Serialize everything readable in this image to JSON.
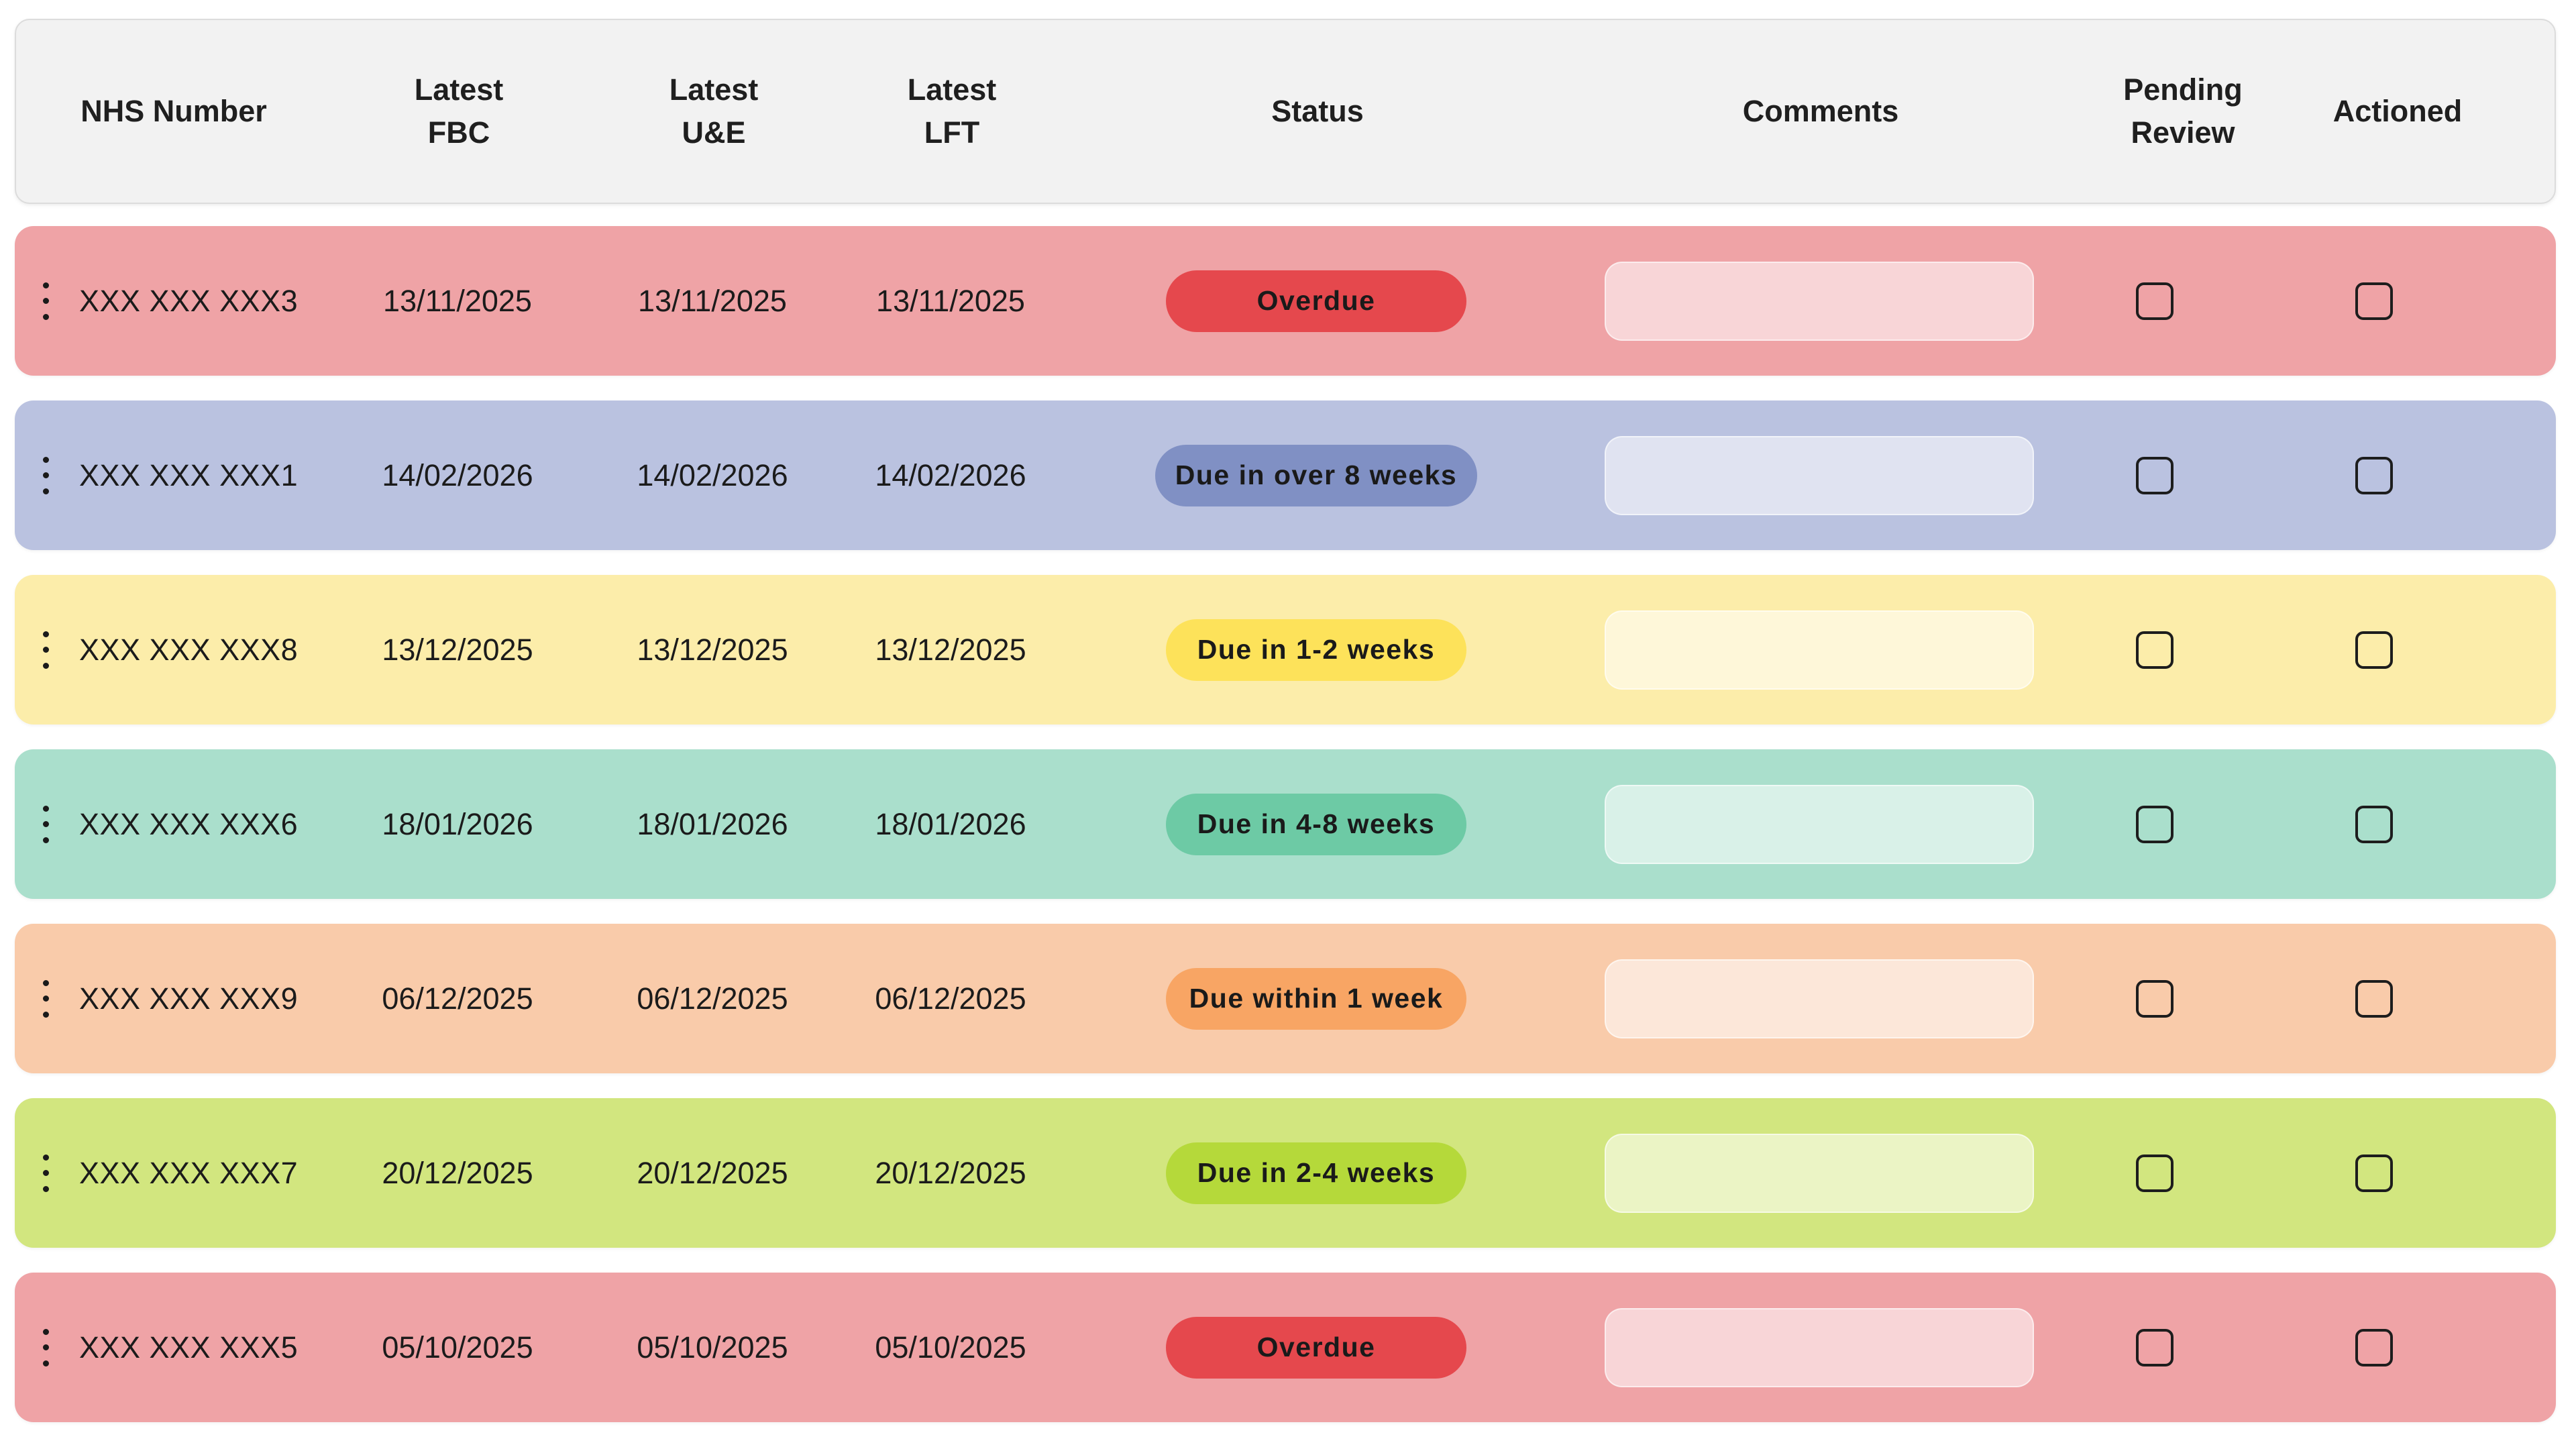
{
  "header": {
    "nhs_number": "NHS Number",
    "latest_fbc": "Latest\nFBC",
    "latest_ue": "Latest\nU&E",
    "latest_lft": "Latest\nLFT",
    "status": "Status",
    "comments": "Comments",
    "pending_review": "Pending\nReview",
    "actioned": "Actioned"
  },
  "status_colors": {
    "Overdue": {
      "row": "#efa3a6",
      "badge": "#e5484d"
    },
    "Due in over 8 weeks": {
      "row": "#bac2e0",
      "badge": "#8090c4"
    },
    "Due in 1-2 weeks": {
      "row": "#fcedaa",
      "badge": "#fde25a"
    },
    "Due in 4-8 weeks": {
      "row": "#aadfcc",
      "badge": "#6dcaa5"
    },
    "Due within 1 week": {
      "row": "#f9cbaa",
      "badge": "#f8a564"
    },
    "Due in 2-4 weeks": {
      "row": "#d2e67f",
      "badge": "#b5d93a"
    }
  },
  "rows": [
    {
      "nhs": "XXX XXX XXX3",
      "fbc": "13/11/2025",
      "ue": "13/11/2025",
      "lft": "13/11/2025",
      "status": "Overdue",
      "comment": "",
      "pending_review": false,
      "actioned": false
    },
    {
      "nhs": "XXX XXX XXX1",
      "fbc": "14/02/2026",
      "ue": "14/02/2026",
      "lft": "14/02/2026",
      "status": "Due in over 8 weeks",
      "comment": "",
      "pending_review": false,
      "actioned": false
    },
    {
      "nhs": "XXX XXX XXX8",
      "fbc": "13/12/2025",
      "ue": "13/12/2025",
      "lft": "13/12/2025",
      "status": "Due in 1-2 weeks",
      "comment": "",
      "pending_review": false,
      "actioned": false
    },
    {
      "nhs": "XXX XXX XXX6",
      "fbc": "18/01/2026",
      "ue": "18/01/2026",
      "lft": "18/01/2026",
      "status": "Due in 4-8 weeks",
      "comment": "",
      "pending_review": false,
      "actioned": false
    },
    {
      "nhs": "XXX XXX XXX9",
      "fbc": "06/12/2025",
      "ue": "06/12/2025",
      "lft": "06/12/2025",
      "status": "Due within 1 week",
      "comment": "",
      "pending_review": false,
      "actioned": false
    },
    {
      "nhs": "XXX XXX XXX7",
      "fbc": "20/12/2025",
      "ue": "20/12/2025",
      "lft": "20/12/2025",
      "status": "Due in 2-4 weeks",
      "comment": "",
      "pending_review": false,
      "actioned": false
    },
    {
      "nhs": "XXX XXX XXX5",
      "fbc": "05/10/2025",
      "ue": "05/10/2025",
      "lft": "05/10/2025",
      "status": "Overdue",
      "comment": "",
      "pending_review": false,
      "actioned": false
    }
  ]
}
